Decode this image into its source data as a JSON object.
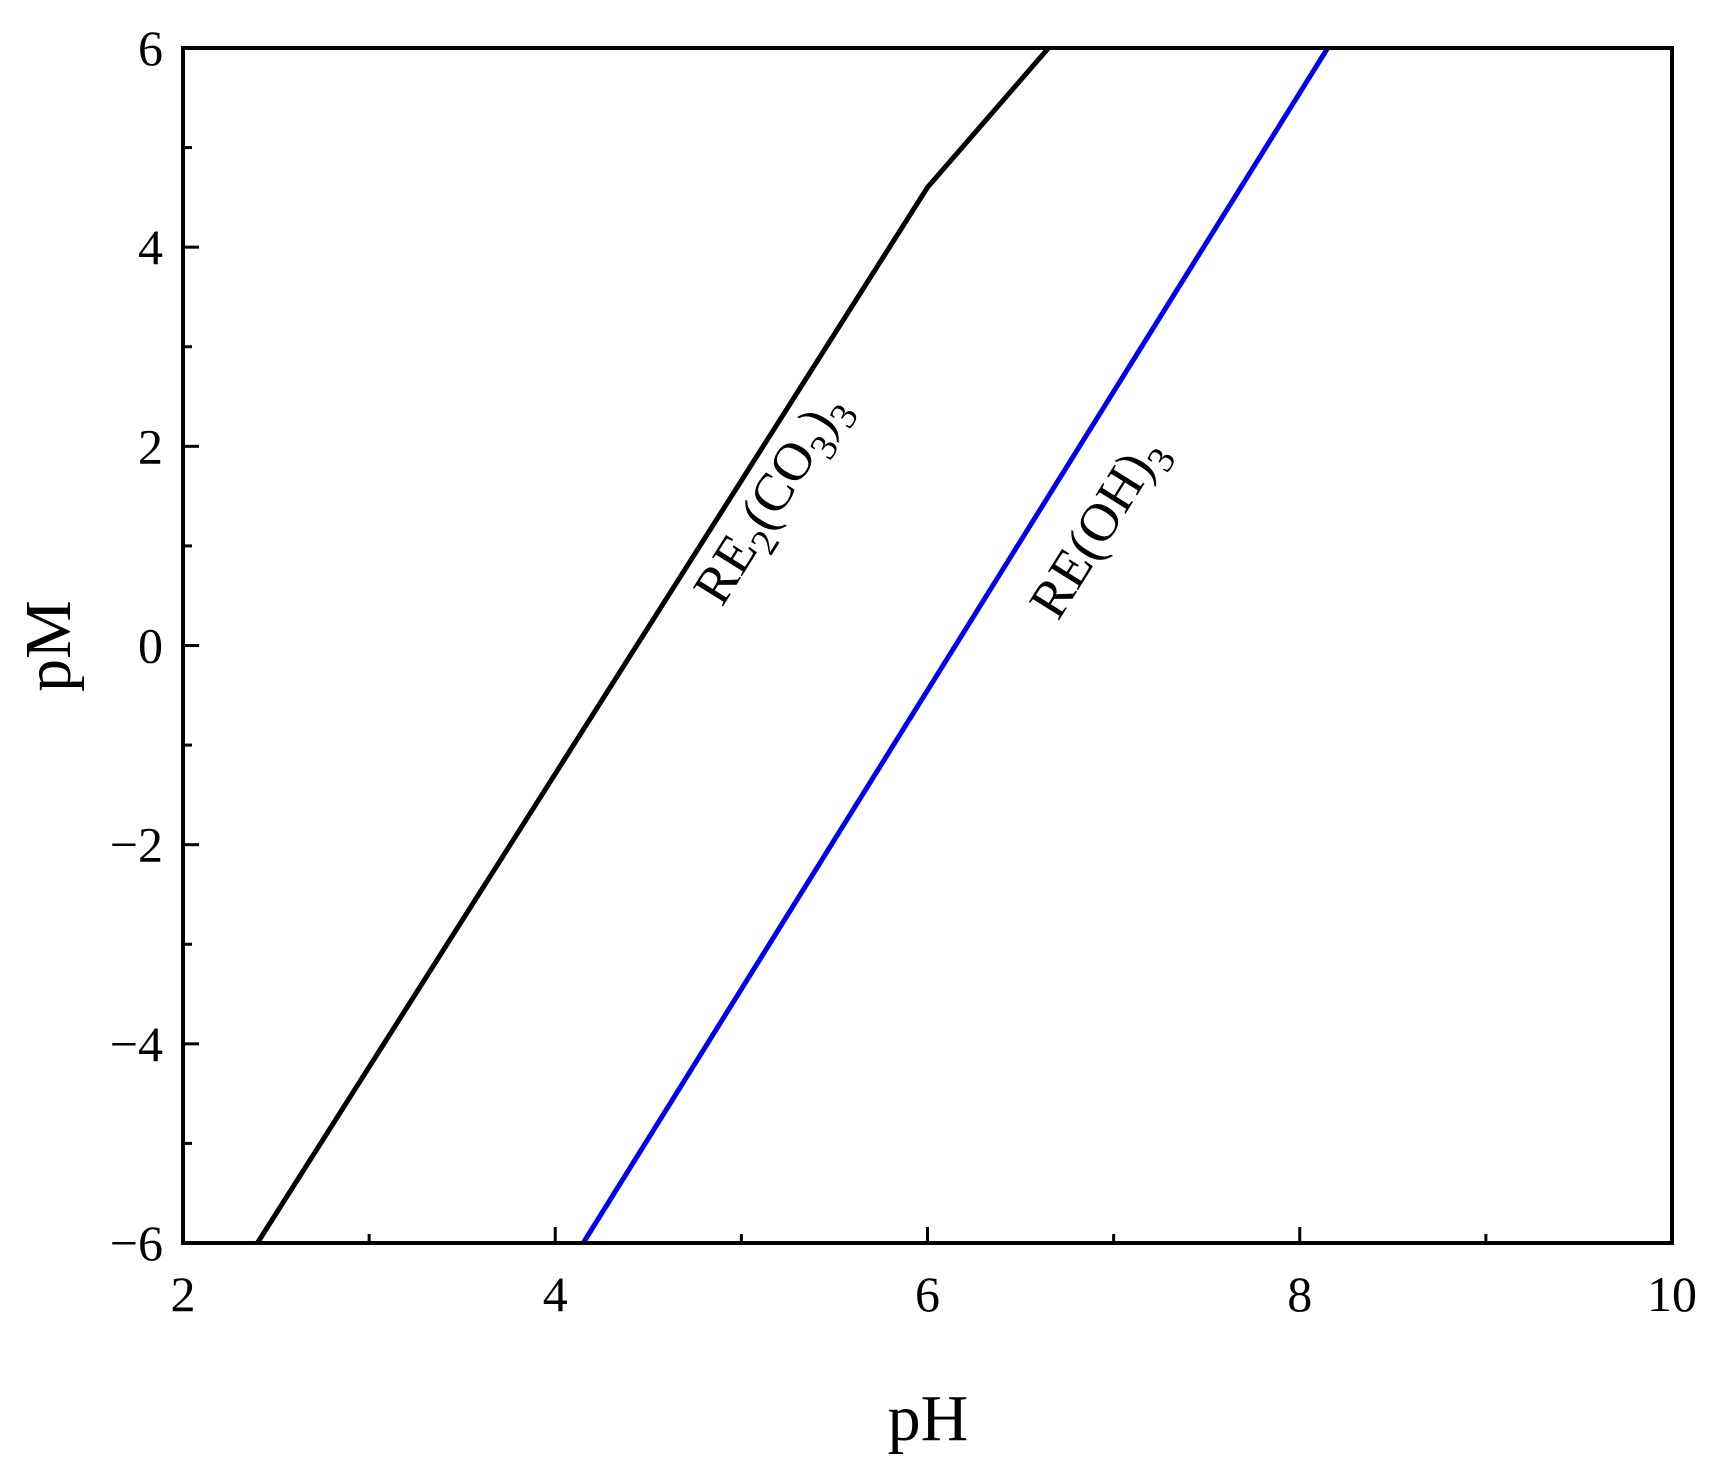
{
  "chart_data": {
    "type": "line",
    "xlabel": "pH",
    "ylabel": "pM",
    "xlim": [
      2,
      10
    ],
    "ylim": [
      -6,
      6
    ],
    "xticks": [
      2,
      4,
      6,
      8,
      10
    ],
    "yticks": [
      -6,
      -4,
      -2,
      0,
      2,
      4,
      6
    ],
    "grid": false,
    "series": [
      {
        "label_main": "RE",
        "label_sub1": "2",
        "label_mid": "(CO",
        "label_sub2": "3",
        "label_close": ")",
        "label_sub3": "3",
        "color": "#000000",
        "x": [
          2.4,
          6.0,
          6.65
        ],
        "y": [
          -6,
          4.6,
          6
        ]
      },
      {
        "label_main": "RE(OH)",
        "label_sub1": "3",
        "color": "#0000ee",
        "x": [
          4.15,
          8.15
        ],
        "y": [
          -6,
          6
        ]
      }
    ]
  }
}
